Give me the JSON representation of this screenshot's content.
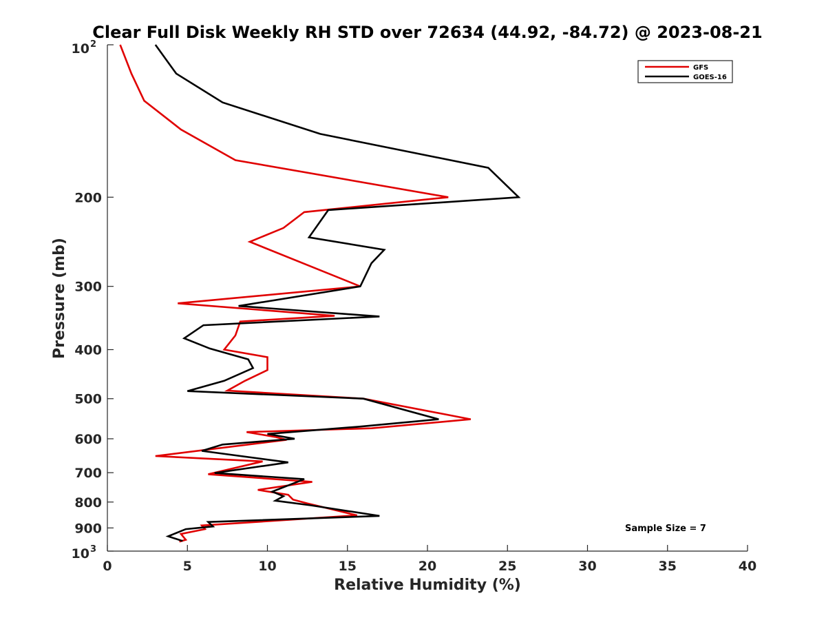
{
  "chart_data": {
    "type": "line",
    "title": "Clear Full Disk Weekly RH STD over 72634 (44.92, -84.72) @ 2023-08-21",
    "xlabel": "Relative Humidity (%)",
    "ylabel": "Pressure (mb)",
    "xlim": [
      0,
      40
    ],
    "ylim": [
      100,
      1000
    ],
    "yscale": "log",
    "y_reversed": true,
    "x_ticks": [
      0,
      5,
      10,
      15,
      20,
      25,
      30,
      35,
      40
    ],
    "x_tick_labels": [
      "0",
      "5",
      "10",
      "15",
      "20",
      "25",
      "30",
      "35",
      "40"
    ],
    "y_ticks": [
      200,
      300,
      400,
      500,
      600,
      700,
      800,
      900
    ],
    "y_tick_labels": [
      "200",
      "300",
      "400",
      "500",
      "600",
      "700",
      "800",
      "900"
    ],
    "y_end_labels": {
      "top": {
        "base": "10",
        "exp": "2"
      },
      "bottom": {
        "base": "10",
        "exp": "3"
      }
    },
    "legend_position": "top-right",
    "annotation": "Sample Size = 7",
    "series": [
      {
        "name": "GFS",
        "color": "#e00000",
        "points": [
          [
            0.8,
            100
          ],
          [
            1.5,
            114
          ],
          [
            2.3,
            129
          ],
          [
            4.6,
            147
          ],
          [
            8.0,
            169
          ],
          [
            21.3,
            200
          ],
          [
            12.3,
            214
          ],
          [
            11.0,
            230
          ],
          [
            8.9,
            245
          ],
          [
            15.8,
            300
          ],
          [
            4.4,
            324
          ],
          [
            14.2,
            343
          ],
          [
            8.3,
            352
          ],
          [
            8.0,
            375
          ],
          [
            7.3,
            400
          ],
          [
            10.0,
            414
          ],
          [
            10.0,
            439
          ],
          [
            8.6,
            461
          ],
          [
            7.5,
            482
          ],
          [
            16.0,
            500
          ],
          [
            22.7,
            549
          ],
          [
            16.5,
            572
          ],
          [
            8.7,
            582
          ],
          [
            10.5,
            595
          ],
          [
            11.2,
            603
          ],
          [
            3.0,
            649
          ],
          [
            9.7,
            665
          ],
          [
            6.3,
            705
          ],
          [
            12.8,
            730
          ],
          [
            9.4,
            757
          ],
          [
            11.3,
            774
          ],
          [
            11.6,
            791
          ],
          [
            12.5,
            805
          ],
          [
            15.6,
            850
          ],
          [
            5.9,
            890
          ],
          [
            6.1,
            905
          ],
          [
            4.6,
            925
          ],
          [
            4.9,
            950
          ],
          [
            4.5,
            958
          ]
        ]
      },
      {
        "name": "GOES-16",
        "color": "#000000",
        "points": [
          [
            3.0,
            100
          ],
          [
            4.3,
            114
          ],
          [
            7.2,
            130
          ],
          [
            13.3,
            150
          ],
          [
            23.8,
            175
          ],
          [
            25.7,
            200
          ],
          [
            13.8,
            212
          ],
          [
            12.6,
            240
          ],
          [
            17.3,
            254
          ],
          [
            16.5,
            270
          ],
          [
            15.8,
            300
          ],
          [
            8.2,
            328
          ],
          [
            17.0,
            344
          ],
          [
            6.0,
            358
          ],
          [
            4.8,
            380
          ],
          [
            6.4,
            398
          ],
          [
            8.8,
            418
          ],
          [
            9.1,
            435
          ],
          [
            7.3,
            461
          ],
          [
            5.0,
            483
          ],
          [
            16.0,
            500
          ],
          [
            20.7,
            549
          ],
          [
            15.7,
            568
          ],
          [
            10.0,
            587
          ],
          [
            11.7,
            600
          ],
          [
            7.2,
            616
          ],
          [
            5.9,
            634
          ],
          [
            11.3,
            668
          ],
          [
            6.7,
            701
          ],
          [
            12.3,
            721
          ],
          [
            10.3,
            763
          ],
          [
            11.0,
            779
          ],
          [
            10.5,
            795
          ],
          [
            12.7,
            812
          ],
          [
            17.0,
            852
          ],
          [
            6.3,
            876
          ],
          [
            6.6,
            894
          ],
          [
            4.9,
            905
          ],
          [
            3.8,
            935
          ],
          [
            4.7,
            955
          ]
        ]
      }
    ]
  }
}
